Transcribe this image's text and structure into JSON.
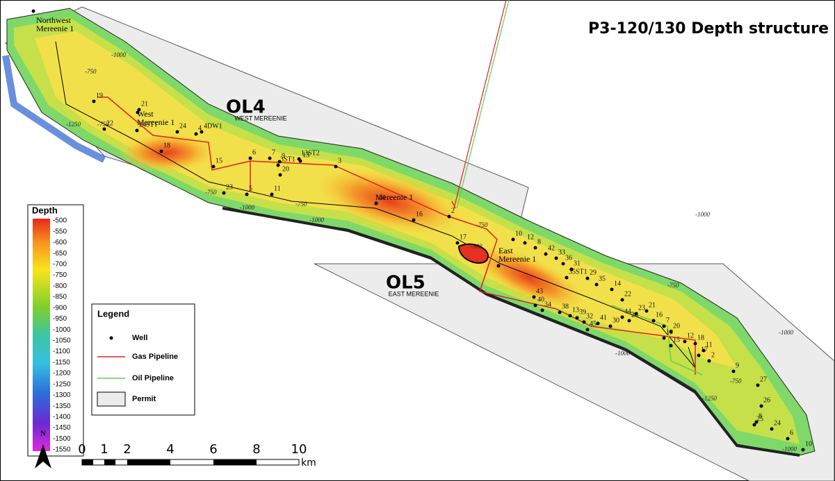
{
  "title": "P3-120/130 Depth structure",
  "fields": [
    {
      "code": "OL4",
      "name": "WEST MEREENIE"
    },
    {
      "code": "OL5",
      "name": "EAST MEREENIE"
    }
  ],
  "named_wells": [
    {
      "lines": [
        "Northwest",
        "Mereenie 1"
      ]
    },
    {
      "lines": [
        "West",
        "Mereenie 1"
      ]
    },
    {
      "lines": [
        "Mereenie 1"
      ]
    },
    {
      "lines": [
        "East",
        "Mereenie 1"
      ]
    }
  ],
  "wells": [
    "19",
    "21",
    "22",
    "24ST1",
    "24",
    "4",
    "4DW1",
    "18",
    "15",
    "6",
    "7",
    "9",
    "13ST2",
    "3ST1",
    "13",
    "3",
    "20",
    "23",
    "5",
    "11",
    "14",
    "16",
    "2",
    "17",
    "10",
    "12",
    "8",
    "42",
    "33",
    "36",
    "31",
    "35ST1",
    "29",
    "35",
    "14",
    "22",
    "43",
    "40",
    "34",
    "38",
    "13",
    "39",
    "32",
    "41",
    "45",
    "30",
    "44",
    "28",
    "23",
    "21",
    "16",
    "7",
    "20",
    "19",
    "15",
    "12",
    "18",
    "17",
    "11",
    "2",
    "9",
    "27",
    "26",
    "8",
    "25",
    "24",
    "6",
    "10"
  ],
  "contour_labels": [
    "-1000",
    "-750",
    "-750",
    "-1250",
    "-750",
    "-1000",
    "-750",
    "-1000",
    "-750",
    "-500",
    "-1000",
    "-750",
    "-1000",
    "-1250",
    "-1000",
    "-1000",
    "-750"
  ],
  "depth_legend": {
    "title": "Depth",
    "labels": [
      "-500",
      "-550",
      "-600",
      "-650",
      "-700",
      "-750",
      "-800",
      "-850",
      "-900",
      "-950",
      "-1000",
      "-1050",
      "-1100",
      "-1150",
      "-1200",
      "-1250",
      "-1300",
      "-1350",
      "-1400",
      "-1450",
      "-1500",
      "-1550"
    ]
  },
  "legend": {
    "title": "Legend",
    "items": [
      "Well",
      "Gas Pipeline",
      "Oil Pipeline",
      "Permit"
    ]
  },
  "scale_bar": {
    "labels": [
      "0",
      "1",
      "2",
      "4",
      "6",
      "8",
      "10"
    ],
    "unit": "km"
  },
  "north": "N"
}
